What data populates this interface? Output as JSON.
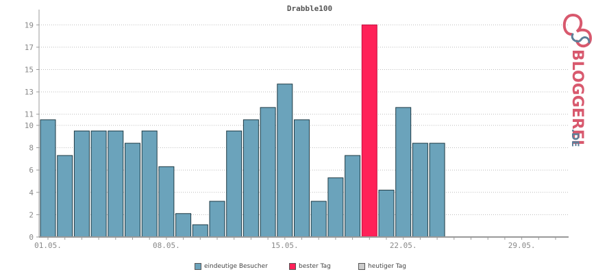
{
  "chart_data": {
    "type": "bar",
    "title": "Drabble100",
    "ylim": [
      0,
      20
    ],
    "yticks": [
      0,
      2,
      4,
      6,
      8,
      10,
      11,
      13,
      15,
      17,
      19
    ],
    "xtick_labels": [
      {
        "index": 0,
        "label": "01.05."
      },
      {
        "index": 7,
        "label": "08.05."
      },
      {
        "index": 14,
        "label": "15.05."
      },
      {
        "index": 21,
        "label": "22.05."
      },
      {
        "index": 28,
        "label": "29.05."
      }
    ],
    "total_days": 31,
    "values": [
      10.5,
      7.3,
      9.5,
      9.5,
      9.5,
      8.4,
      9.5,
      6.3,
      2.1,
      1.1,
      3.2,
      9.5,
      10.5,
      11.6,
      13.7,
      10.5,
      3.2,
      5.3,
      7.3,
      19,
      4.2,
      11.6,
      8.4,
      8.4
    ],
    "best_day_index": 19,
    "grid": true,
    "legend_position": "bottom",
    "colors": {
      "bar": "#6ba3bb",
      "best": "#ff2158",
      "today": "#cccccc",
      "bar_stroke": "#1e3a44",
      "grid": "#bbbbbb",
      "axis": "#999999"
    }
  },
  "legend": [
    {
      "label": "eindeutige Besucher",
      "color": "#6ba3bb"
    },
    {
      "label": "bester Tag",
      "color": "#ff2158"
    },
    {
      "label": "heutiger Tag",
      "color": "#cccccc"
    }
  ],
  "logo": {
    "text": "BLOGGEREI",
    "suffix": ".DE",
    "colors": {
      "main": "#d8596e",
      "secondary": "#5c7f99"
    }
  }
}
